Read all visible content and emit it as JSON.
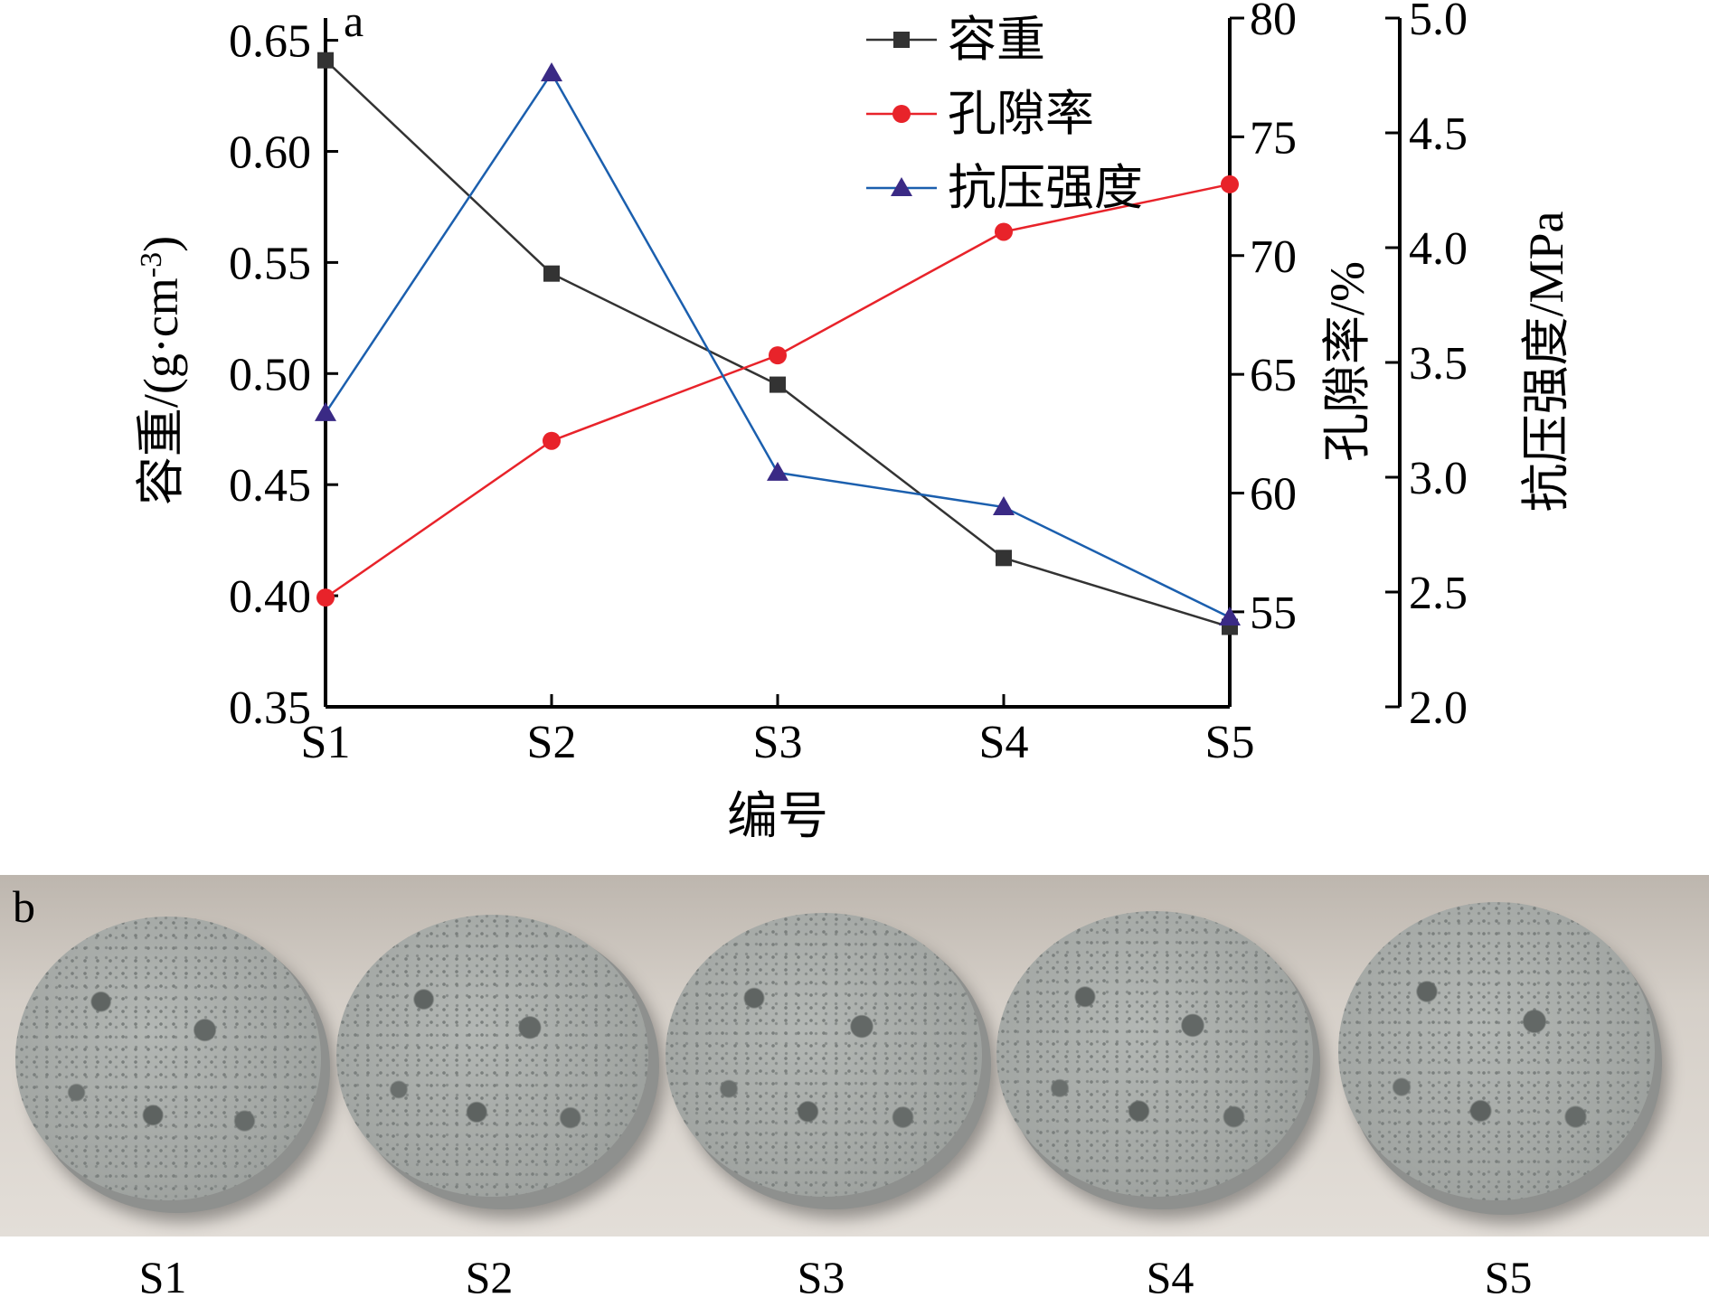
{
  "figure": {
    "panel_a_label": "a",
    "panel_b_label": "b"
  },
  "chart_data": {
    "type": "line",
    "categories": [
      "S1",
      "S2",
      "S3",
      "S4",
      "S5"
    ],
    "xlabel": "编号",
    "axes": {
      "left": {
        "label": "容重/(g·cm",
        "label_sup": "-3",
        "label_close": ")",
        "ylim": [
          0.35,
          0.66
        ],
        "ticks": [
          "0.35",
          "0.40",
          "0.45",
          "0.50",
          "0.55",
          "0.60",
          "0.65"
        ]
      },
      "right1": {
        "label": "孔隙率/%",
        "ylim": [
          51,
          80
        ],
        "ticks": [
          "55",
          "60",
          "65",
          "70",
          "75",
          "80"
        ]
      },
      "right2": {
        "label": "抗压强度/MPa",
        "ylim": [
          2.0,
          5.0
        ],
        "ticks": [
          "2.0",
          "2.5",
          "3.0",
          "3.5",
          "4.0",
          "4.5",
          "5.0"
        ]
      }
    },
    "series": [
      {
        "name": "容重",
        "axis": "left",
        "color": "#333333",
        "marker": "square",
        "values": [
          0.641,
          0.545,
          0.495,
          0.417,
          0.386
        ]
      },
      {
        "name": "孔隙率",
        "axis": "right1",
        "color": "#e8232a",
        "marker": "circle",
        "values": [
          55.6,
          62.2,
          65.8,
          71.0,
          73.0
        ]
      },
      {
        "name": "抗压强度",
        "axis": "right2",
        "color": "#1b5fae",
        "marker_color": "#3a2a85",
        "marker": "triangle",
        "values": [
          3.28,
          4.76,
          3.02,
          2.87,
          2.39
        ]
      }
    ],
    "legend_position": "top-right",
    "grid": false
  },
  "photo": {
    "samples": [
      "S1",
      "S2",
      "S3",
      "S4",
      "S5"
    ]
  }
}
